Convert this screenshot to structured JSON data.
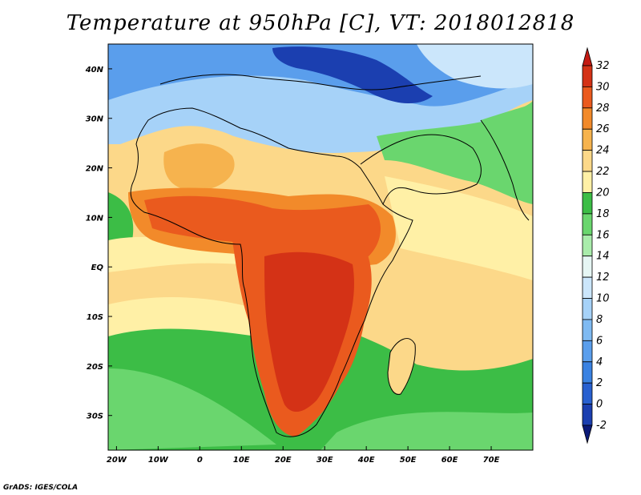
{
  "title": "Temperature at 950hPa [C], VT: 2018012818",
  "footer": "GrADS: IGES/COLA",
  "axes": {
    "lat_labels": [
      {
        "value": 40,
        "text": "40N"
      },
      {
        "value": 30,
        "text": "30N"
      },
      {
        "value": 20,
        "text": "20N"
      },
      {
        "value": 10,
        "text": "10N"
      },
      {
        "value": 0,
        "text": "EQ"
      },
      {
        "value": -10,
        "text": "10S"
      },
      {
        "value": -20,
        "text": "20S"
      },
      {
        "value": -30,
        "text": "30S"
      }
    ],
    "lon_labels": [
      {
        "value": -20,
        "text": "20W"
      },
      {
        "value": -10,
        "text": "10W"
      },
      {
        "value": 0,
        "text": "0"
      },
      {
        "value": 10,
        "text": "10E"
      },
      {
        "value": 20,
        "text": "20E"
      },
      {
        "value": 30,
        "text": "30E"
      },
      {
        "value": 40,
        "text": "40E"
      },
      {
        "value": 50,
        "text": "50E"
      },
      {
        "value": 60,
        "text": "60E"
      },
      {
        "value": 70,
        "text": "70E"
      }
    ],
    "lon_range": [
      -22,
      80
    ],
    "lat_range": [
      -37,
      45
    ]
  },
  "colorbar": {
    "levels": [
      "-2",
      "0",
      "2",
      "4",
      "6",
      "8",
      "10",
      "12",
      "14",
      "16",
      "18",
      "20",
      "22",
      "24",
      "26",
      "28",
      "30",
      "32"
    ],
    "colors": [
      "#0c1a78",
      "#1b3fb0",
      "#2860d0",
      "#3a82e2",
      "#5a9eec",
      "#7fbaf2",
      "#a6d2f8",
      "#cbe6fb",
      "#e6f6f4",
      "#a9ecab",
      "#6ad66e",
      "#3cbd46",
      "#fff0a6",
      "#fcd889",
      "#f6b34e",
      "#f28a2a",
      "#ea5a1e",
      "#d43216",
      "#c41a12"
    ]
  },
  "regions": [
    {
      "name": "cold-mediterranean",
      "color": "#1b3fb0"
    },
    {
      "name": "europe-blue",
      "color": "#5a9eec"
    },
    {
      "name": "iran-light",
      "color": "#cbe6fb"
    },
    {
      "name": "north-africa-blue",
      "color": "#a6d2f8"
    },
    {
      "name": "sahara-warm",
      "color": "#fcd889"
    },
    {
      "name": "sahel-orange",
      "color": "#f28a2a"
    },
    {
      "name": "central-red",
      "color": "#ea5a1e"
    },
    {
      "name": "southern-red",
      "color": "#d43216"
    },
    {
      "name": "atlantic-yellow",
      "color": "#fff0a6"
    },
    {
      "name": "southern-ocean-green",
      "color": "#3cbd46"
    },
    {
      "name": "indian-ocean-yellow",
      "color": "#fcd889"
    },
    {
      "name": "india-green",
      "color": "#6ad66e"
    },
    {
      "name": "arabia-light",
      "color": "#cbe6fb"
    }
  ]
}
